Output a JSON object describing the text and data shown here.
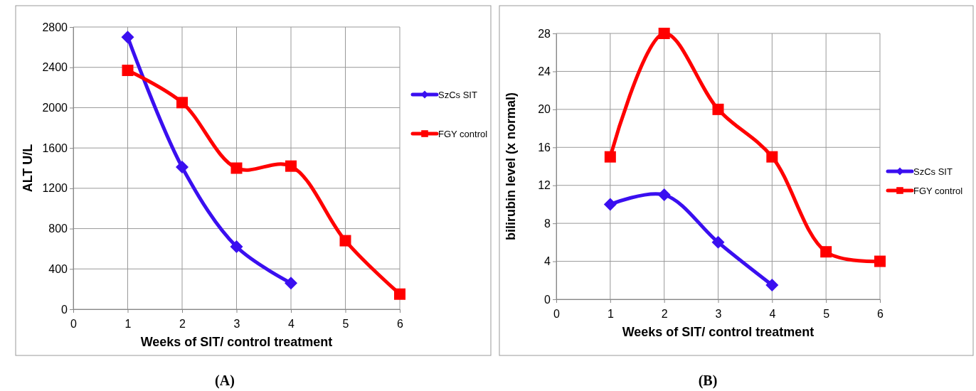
{
  "chart_data": [
    {
      "type": "line",
      "title": "(A)",
      "xlabel": "Weeks of SIT/ control treatment",
      "ylabel": "ALT U/L",
      "xlim": [
        0,
        6
      ],
      "xticks": [
        0,
        1,
        2,
        3,
        4,
        5,
        6
      ],
      "ylim": [
        0,
        2800
      ],
      "yticks": [
        0,
        400,
        800,
        1200,
        1600,
        2000,
        2400,
        2800
      ],
      "grid": true,
      "legend": "right",
      "series": [
        {
          "name": "SzCs SIT",
          "color": "#3a0ff0",
          "marker": "diamond",
          "x": [
            1,
            2,
            3,
            4
          ],
          "values": [
            2700,
            1410,
            620,
            260
          ]
        },
        {
          "name": "FGY control",
          "color": "#ff0000",
          "marker": "square",
          "x": [
            1,
            2,
            3,
            4,
            5,
            6
          ],
          "values": [
            2370,
            2050,
            1400,
            1420,
            680,
            150
          ]
        }
      ]
    },
    {
      "type": "line",
      "title": "(B)",
      "xlabel": "Weeks of SIT/ control treatment",
      "ylabel": "bilirubin level (x normal)",
      "xlim": [
        0,
        6
      ],
      "xticks": [
        0,
        1,
        2,
        3,
        4,
        5,
        6
      ],
      "ylim": [
        0,
        28
      ],
      "yticks": [
        0,
        4,
        8,
        12,
        16,
        20,
        24,
        28
      ],
      "grid": true,
      "legend": "right",
      "series": [
        {
          "name": "SzCs SIT",
          "color": "#3a0ff0",
          "marker": "diamond",
          "x": [
            1,
            2,
            3,
            4
          ],
          "values": [
            10,
            11,
            6,
            1.5
          ]
        },
        {
          "name": "FGY control",
          "color": "#ff0000",
          "marker": "square",
          "x": [
            1,
            2,
            3,
            4,
            5,
            6
          ],
          "values": [
            15,
            28,
            20,
            15,
            5,
            4
          ]
        }
      ]
    }
  ]
}
